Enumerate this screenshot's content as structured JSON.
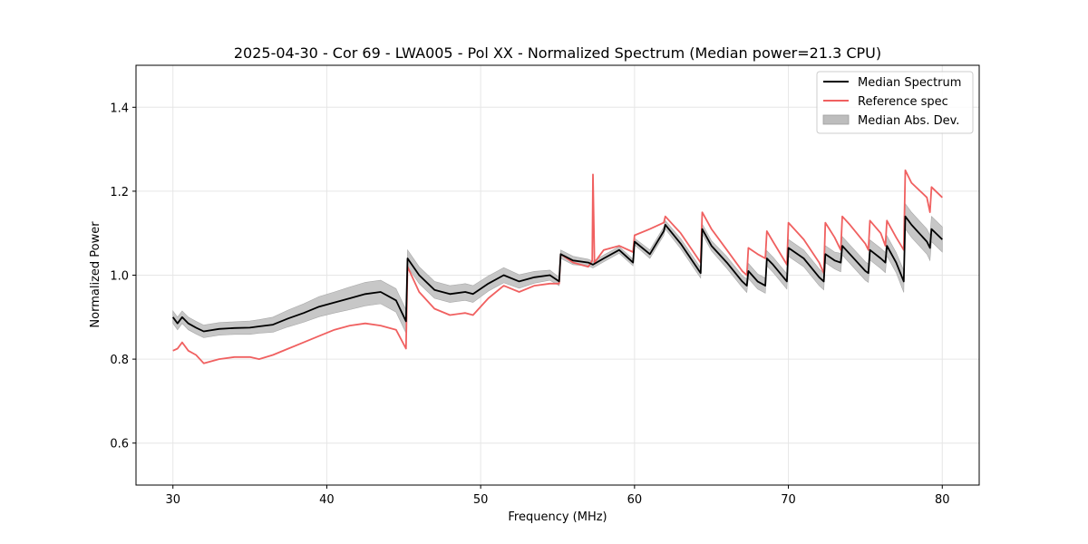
{
  "chart_data": {
    "type": "line",
    "title": "2025-04-30 - Cor 69 - LWA005 - Pol XX - Normalized Spectrum (Median power=21.3 CPU)",
    "xlabel": "Frequency (MHz)",
    "ylabel": "Normalized Power",
    "xlim": [
      27.6,
      82.4
    ],
    "ylim": [
      0.5,
      1.5
    ],
    "xticks": [
      30,
      40,
      50,
      60,
      70,
      80
    ],
    "yticks": [
      0.6,
      0.8,
      1.0,
      1.2,
      1.4
    ],
    "xtick_labels": [
      "30",
      "40",
      "50",
      "60",
      "70",
      "80"
    ],
    "ytick_labels": [
      "0.6",
      "0.8",
      "1.0",
      "1.2",
      "1.4"
    ],
    "grid": true,
    "legend_position": "top-right",
    "legend": [
      "Median Spectrum",
      "Reference spec",
      "Median Abs. Dev."
    ],
    "colors": {
      "median": "#000000",
      "reference": "#f06060",
      "band": "#bdbdbd",
      "grid": "#e6e6e6"
    },
    "series": [
      {
        "name": "Median Spectrum",
        "x": [
          30,
          30.3,
          30.6,
          31,
          31.5,
          32,
          33,
          34,
          35,
          35.6,
          36.5,
          37.5,
          38.5,
          39.5,
          40.5,
          41.5,
          42.5,
          43.5,
          44.5,
          45.15,
          45.25,
          46,
          47,
          48,
          49,
          49.5,
          50.5,
          51.5,
          52.5,
          53.5,
          54.5,
          55.1,
          55.2,
          56,
          57,
          57.3,
          58,
          59,
          59.9,
          60,
          61,
          61.9,
          62,
          63,
          64.3,
          64.4,
          65,
          66,
          67,
          67.3,
          67.4,
          68,
          68.5,
          68.6,
          69,
          69.9,
          70,
          71,
          72,
          72.3,
          72.4,
          73,
          73.4,
          73.5,
          74,
          75,
          75.2,
          75.3,
          76,
          76.3,
          76.4,
          77,
          77.5,
          77.6,
          78,
          79,
          79.2,
          79.3,
          80
        ],
        "values": [
          0.9,
          0.885,
          0.9,
          0.885,
          0.875,
          0.866,
          0.872,
          0.874,
          0.875,
          0.878,
          0.882,
          0.897,
          0.91,
          0.925,
          0.935,
          0.945,
          0.955,
          0.96,
          0.94,
          0.89,
          1.04,
          1.0,
          0.965,
          0.955,
          0.96,
          0.955,
          0.98,
          1.0,
          0.985,
          0.995,
          1.0,
          0.985,
          1.05,
          1.035,
          1.03,
          1.025,
          1.04,
          1.06,
          1.03,
          1.08,
          1.05,
          1.105,
          1.12,
          1.075,
          1.005,
          1.11,
          1.07,
          1.03,
          0.985,
          0.975,
          1.01,
          0.985,
          0.975,
          1.04,
          1.025,
          0.985,
          1.065,
          1.04,
          0.995,
          0.985,
          1.05,
          1.035,
          1.03,
          1.07,
          1.05,
          1.01,
          1.005,
          1.06,
          1.04,
          1.03,
          1.07,
          1.03,
          0.985,
          1.14,
          1.12,
          1.08,
          1.065,
          1.11,
          1.085
        ]
      },
      {
        "name": "Reference spec",
        "x": [
          30,
          30.3,
          30.6,
          31,
          31.5,
          32,
          33,
          34,
          35,
          35.6,
          36.5,
          37.5,
          38.5,
          39.5,
          40.5,
          41.5,
          42.5,
          43.5,
          44.5,
          45.15,
          45.25,
          46,
          47,
          48,
          49,
          49.5,
          50.5,
          51.5,
          52.5,
          53.5,
          54.5,
          55.1,
          55.2,
          56,
          57,
          57.25,
          57.3,
          57.4,
          58,
          59,
          59.9,
          60,
          61,
          61.9,
          62,
          63,
          64.3,
          64.4,
          65,
          66,
          67,
          67.3,
          67.4,
          68,
          68.5,
          68.6,
          69,
          69.9,
          70,
          71,
          72,
          72.3,
          72.4,
          73,
          73.4,
          73.5,
          74,
          75,
          75.2,
          75.3,
          76,
          76.3,
          76.4,
          77,
          77.5,
          77.6,
          78,
          79,
          79.2,
          79.3,
          80
        ],
        "values": [
          0.82,
          0.825,
          0.84,
          0.82,
          0.81,
          0.79,
          0.8,
          0.805,
          0.805,
          0.8,
          0.81,
          0.825,
          0.84,
          0.855,
          0.87,
          0.88,
          0.885,
          0.88,
          0.87,
          0.825,
          1.02,
          0.96,
          0.92,
          0.905,
          0.91,
          0.905,
          0.945,
          0.975,
          0.96,
          0.975,
          0.98,
          0.98,
          1.05,
          1.03,
          1.02,
          1.035,
          1.24,
          1.03,
          1.06,
          1.07,
          1.055,
          1.095,
          1.11,
          1.125,
          1.14,
          1.1,
          1.03,
          1.15,
          1.11,
          1.06,
          1.01,
          1.0,
          1.065,
          1.05,
          1.04,
          1.105,
          1.08,
          1.025,
          1.125,
          1.085,
          1.03,
          1.005,
          1.125,
          1.09,
          1.06,
          1.14,
          1.12,
          1.075,
          1.06,
          1.13,
          1.1,
          1.07,
          1.13,
          1.09,
          1.06,
          1.25,
          1.22,
          1.185,
          1.15,
          1.21,
          1.185
        ]
      }
    ],
    "band": {
      "name": "Median Abs. Dev.",
      "half_width": [
        0.015,
        0.015,
        0.015,
        0.015,
        0.015,
        0.015,
        0.015,
        0.015,
        0.016,
        0.016,
        0.018,
        0.02,
        0.022,
        0.024,
        0.025,
        0.027,
        0.028,
        0.028,
        0.028,
        0.028,
        0.02,
        0.02,
        0.02,
        0.02,
        0.02,
        0.02,
        0.018,
        0.018,
        0.016,
        0.014,
        0.012,
        0.01,
        0.01,
        0.01,
        0.008,
        0.008,
        0.008,
        0.008,
        0.008,
        0.008,
        0.01,
        0.01,
        0.01,
        0.012,
        0.012,
        0.012,
        0.012,
        0.014,
        0.014,
        0.016,
        0.018,
        0.018,
        0.018,
        0.018,
        0.018,
        0.018,
        0.02,
        0.02,
        0.02,
        0.02,
        0.02,
        0.02,
        0.022,
        0.022,
        0.022,
        0.022,
        0.022,
        0.024,
        0.024,
        0.024,
        0.024,
        0.024,
        0.026,
        0.03,
        0.03,
        0.03,
        0.03,
        0.03,
        0.03
      ]
    }
  }
}
